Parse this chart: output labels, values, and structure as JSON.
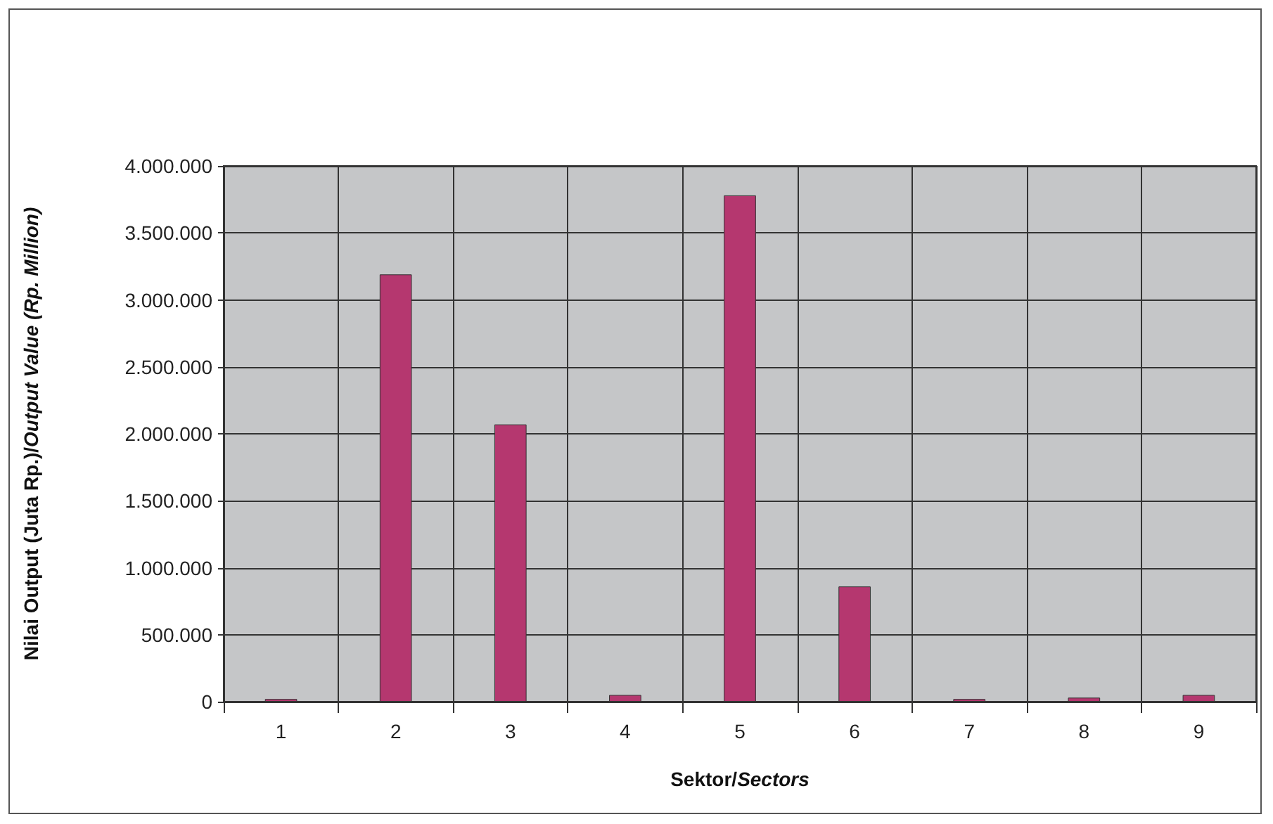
{
  "chart_data": {
    "type": "bar",
    "xlabel": "Sektor/Sectors",
    "ylabel": "Nilai Output (Juta Rp.)/Output Value (Rp. Million)",
    "categories": [
      "1",
      "2",
      "3",
      "4",
      "5",
      "6",
      "7",
      "8",
      "9"
    ],
    "values": [
      20000,
      3190000,
      2070000,
      50000,
      3780000,
      860000,
      20000,
      30000,
      50000
    ],
    "color": "#b5376f",
    "ylim": [
      0,
      4000000
    ],
    "yticks": [
      {
        "value": 0,
        "label": "0"
      },
      {
        "value": 500000,
        "label": "500.000"
      },
      {
        "value": 1000000,
        "label": "1.000.000"
      },
      {
        "value": 1500000,
        "label": "1.500.000"
      },
      {
        "value": 2000000,
        "label": "2.000.000"
      },
      {
        "value": 2500000,
        "label": "2.500.000"
      },
      {
        "value": 3000000,
        "label": "3.000.000"
      },
      {
        "value": 3500000,
        "label": "3.500.000"
      },
      {
        "value": 4000000,
        "label": "4.000.000"
      }
    ],
    "grid": true
  }
}
